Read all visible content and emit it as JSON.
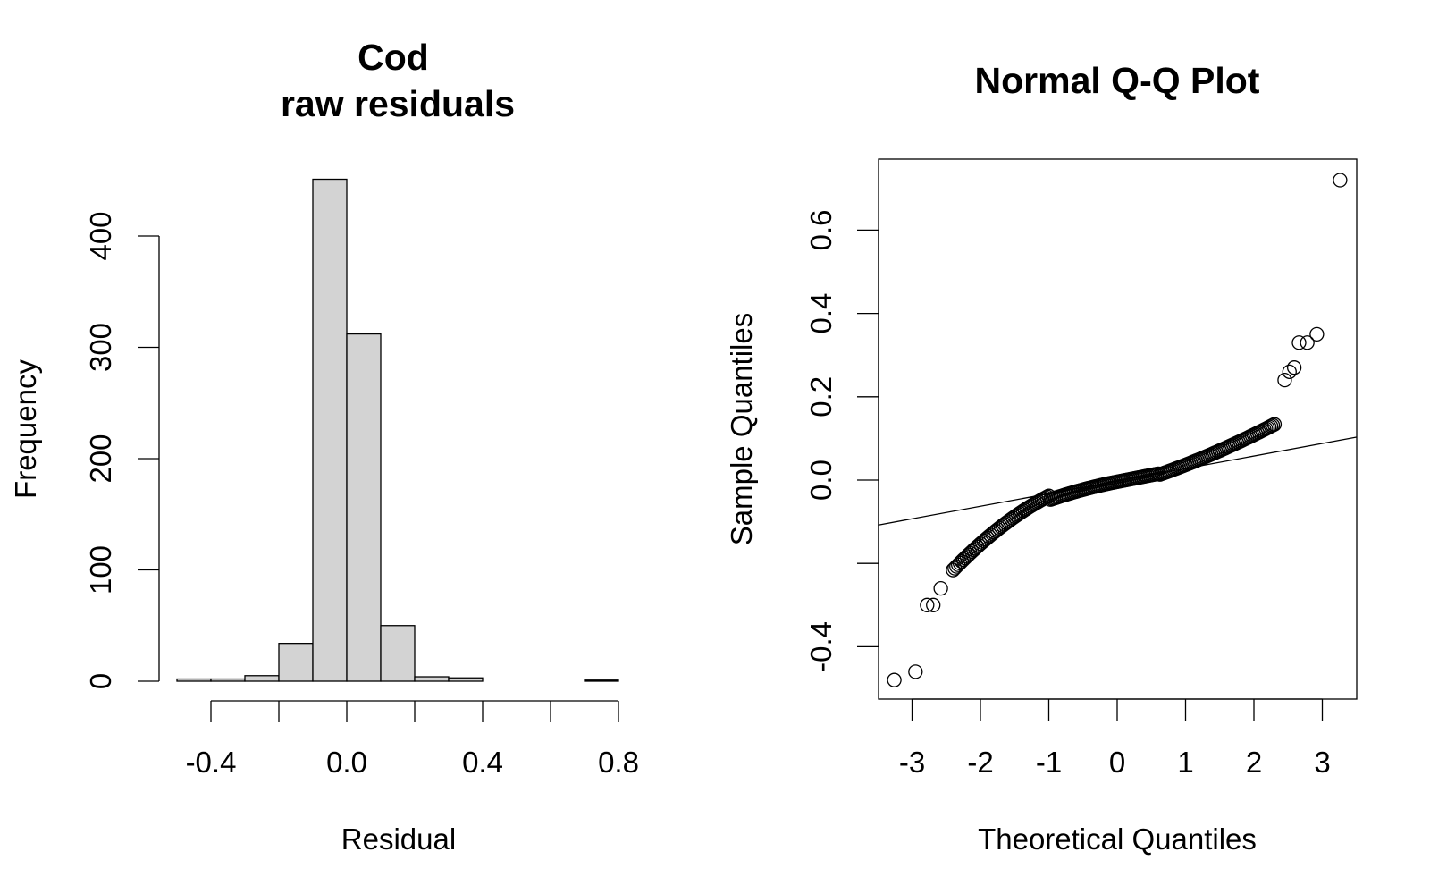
{
  "chart_data": [
    {
      "type": "bar",
      "title_line1": "Cod",
      "title_line2": "raw residuals",
      "xlabel": "Residual",
      "ylabel": "Frequency",
      "bin_edges": [
        -0.5,
        -0.4,
        -0.3,
        -0.2,
        -0.1,
        0.0,
        0.1,
        0.2,
        0.3,
        0.4,
        0.5,
        0.6,
        0.7,
        0.8
      ],
      "values": [
        2,
        2,
        5,
        34,
        451,
        312,
        50,
        4,
        3,
        0,
        0,
        0,
        1
      ],
      "xlim": [
        -0.5,
        0.8
      ],
      "ylim": [
        0,
        400
      ],
      "xticks": [
        -0.4,
        -0.2,
        0.0,
        0.2,
        0.4,
        0.6,
        0.8
      ],
      "xtick_labels": [
        "-0.4",
        "",
        "0.0",
        "",
        "0.4",
        "",
        "0.8"
      ],
      "yticks": [
        0,
        100,
        200,
        300,
        400
      ],
      "ytick_labels": [
        "0",
        "100",
        "200",
        "300",
        "400"
      ]
    },
    {
      "type": "scatter",
      "title": "Normal Q-Q Plot",
      "xlabel": "Theoretical Quantiles",
      "ylabel": "Sample Quantiles",
      "xlim": [
        -3.5,
        3.5
      ],
      "ylim": [
        -0.53,
        0.76
      ],
      "xticks": [
        -3,
        -2,
        -1,
        0,
        1,
        2,
        3
      ],
      "xtick_labels": [
        "-3",
        "-2",
        "-1",
        "0",
        "1",
        "2",
        "3"
      ],
      "yticks": [
        -0.4,
        -0.2,
        0.0,
        0.2,
        0.4,
        0.6
      ],
      "ytick_labels": [
        "-0.4",
        "",
        "0.0",
        "0.2",
        "0.4",
        "0.6"
      ],
      "qq_line": {
        "x": [
          -3.5,
          3.5
        ],
        "y": [
          -0.108,
          0.103
        ]
      },
      "outlier_points": {
        "x": [
          -3.26,
          -2.95,
          -2.78,
          -2.69,
          -2.58,
          2.45,
          2.52,
          2.59,
          2.66,
          2.78,
          2.92,
          3.26
        ],
        "y": [
          -0.48,
          -0.46,
          -0.3,
          -0.3,
          -0.26,
          0.24,
          0.26,
          0.27,
          0.33,
          0.33,
          0.35,
          0.72
        ]
      }
    }
  ]
}
